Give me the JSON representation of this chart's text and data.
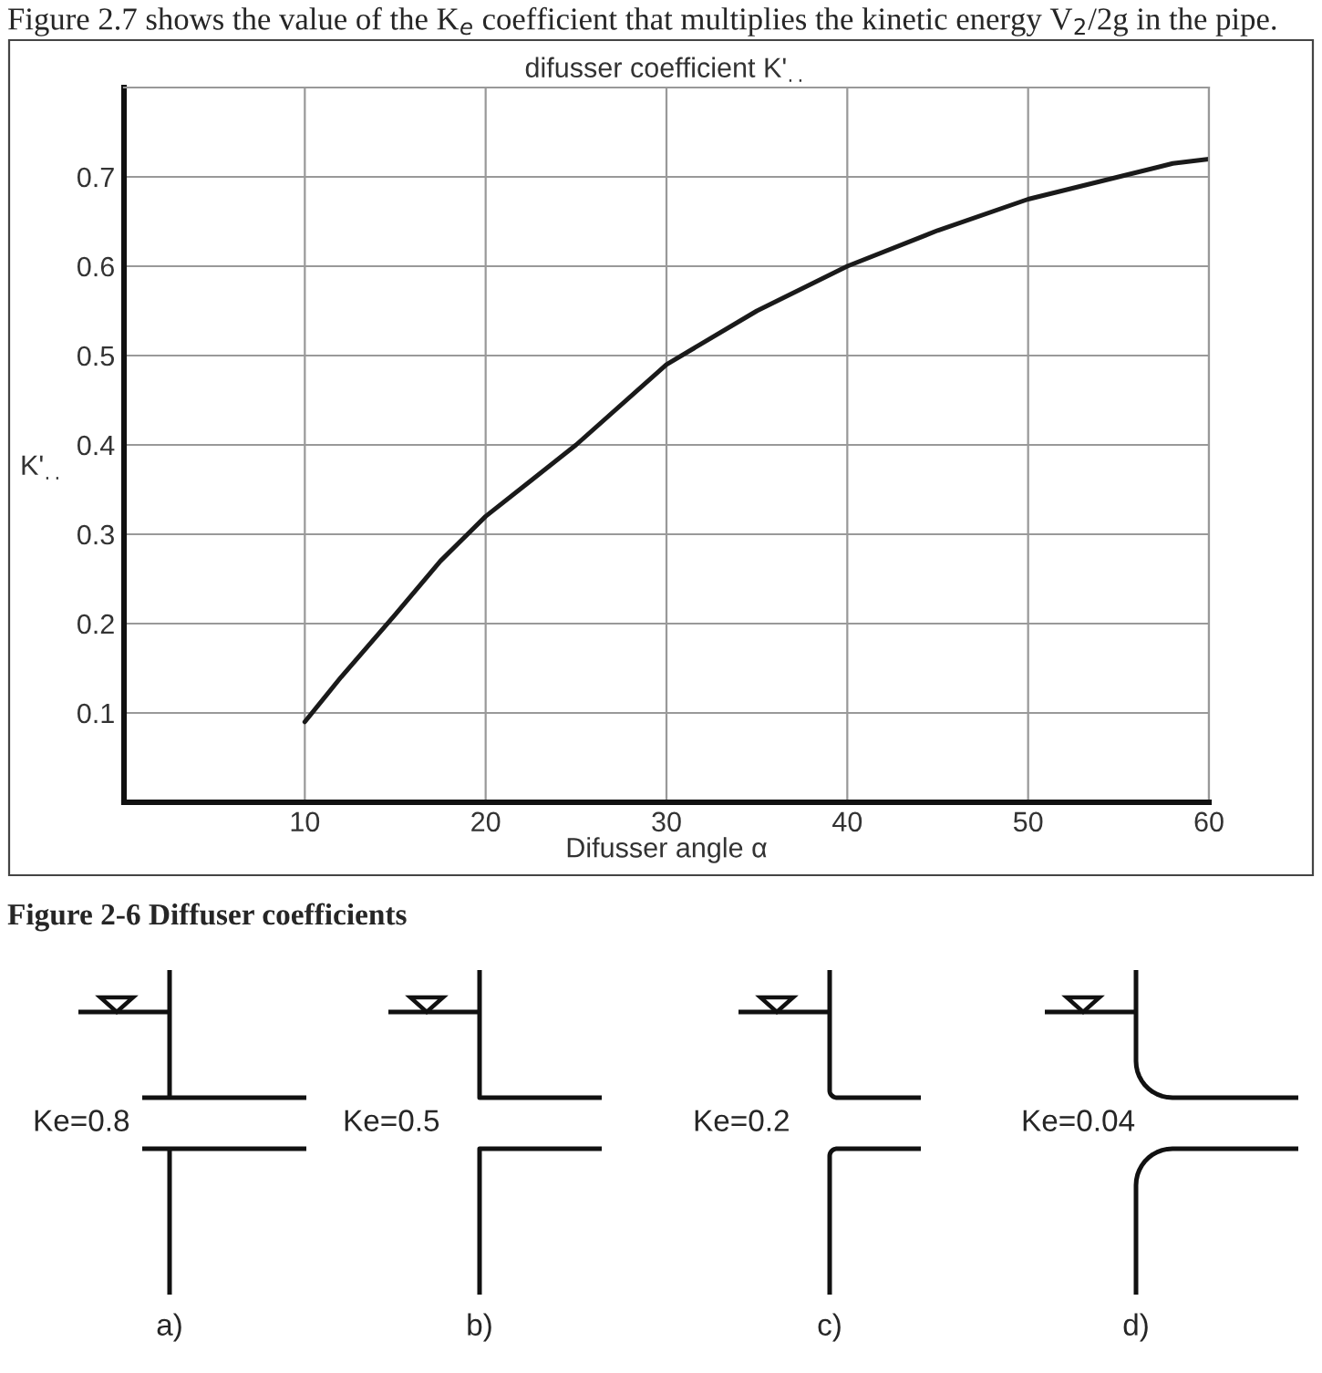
{
  "chart_data": {
    "type": "line",
    "title": "difusser coefficient K'$_{..}$",
    "xlabel": "Difusser angle α",
    "ylabel": "K'$_{..}$",
    "x": [
      10,
      12,
      15,
      17.5,
      20,
      22.5,
      25,
      30,
      35,
      40,
      45,
      50,
      55,
      58,
      60
    ],
    "series": [
      {
        "color": "#1a1a1a",
        "values": [
          0.09,
          0.14,
          0.21,
          0.27,
          0.32,
          0.36,
          0.4,
          0.49,
          0.55,
          0.6,
          0.64,
          0.675,
          0.7,
          0.715,
          0.72
        ]
      }
    ],
    "xlim": [
      0,
      60
    ],
    "ylim": [
      0,
      0.8
    ],
    "xticks": [
      10,
      20,
      30,
      40,
      50,
      60
    ],
    "yticks": [
      0.1,
      0.2,
      0.3,
      0.4,
      0.5,
      0.6,
      0.7
    ],
    "grid": true,
    "legend": false,
    "marker": "none",
    "line_style": "solid",
    "annotations": [
      "Figure 2.7 shows the value of the K$_{e}$ coefficient that multiplies the kinetic energy V$_{2}$/2g in the pipe.",
      "Figure 2-6 Diffuser coefficients",
      "Ke=0.8",
      "Ke=0.5",
      "Ke=0.2",
      "Ke=0.04",
      "a)",
      "b)",
      "c)",
      "d)"
    ]
  }
}
